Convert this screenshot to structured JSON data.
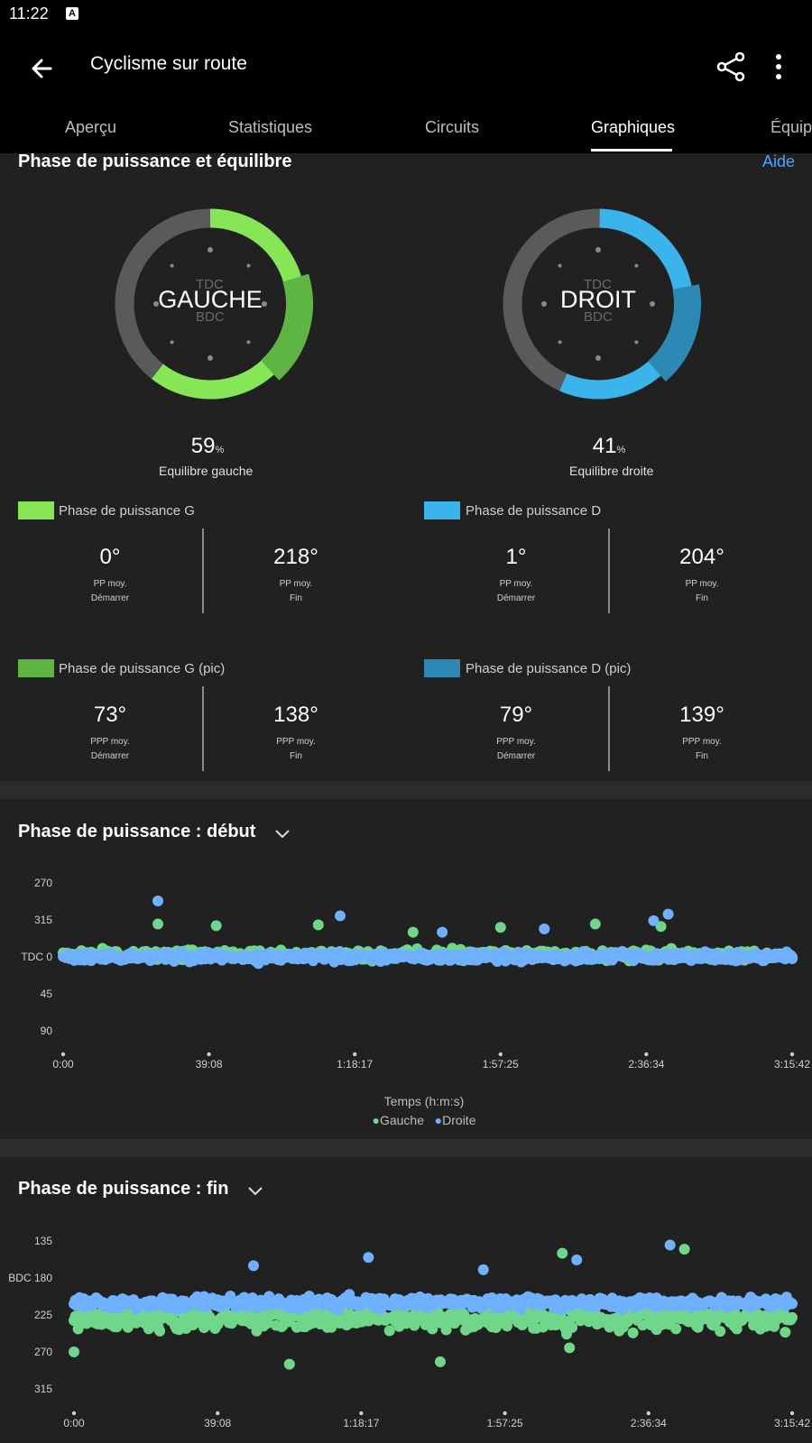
{
  "status_bar": {
    "time": "11:22",
    "notification_icon": "A"
  },
  "app_bar": {
    "title": "Cyclisme sur route"
  },
  "tabs": [
    {
      "label": "Aperçu"
    },
    {
      "label": "Statistiques"
    },
    {
      "label": "Circuits"
    },
    {
      "label": "Graphiques"
    },
    {
      "label": "Équipe"
    }
  ],
  "power_phase": {
    "title": "Phase de puissance et équilibre",
    "help": "Aide",
    "top_label": "TDC",
    "bottom_label": "BDC",
    "left": {
      "label": "GAUCHE",
      "balance_value": "59",
      "balance_unit": "%",
      "balance_caption": "Equilibre gauche",
      "phase_start_deg": 0,
      "phase_end_deg": 218,
      "peak_start_deg": 73,
      "peak_end_deg": 138
    },
    "right": {
      "label": "DROIT",
      "balance_value": "41",
      "balance_unit": "%",
      "balance_caption": "Equilibre droite",
      "phase_start_deg": 1,
      "phase_end_deg": 204,
      "peak_start_deg": 79,
      "peak_end_deg": 139
    },
    "colors": {
      "left": "#86e655",
      "left_peak": "#5fb543",
      "right": "#3ab4ea",
      "right_peak": "#2d88b4",
      "track": "#5a5a5a"
    },
    "groups": [
      {
        "label": "Phase de puissance G",
        "color": "#86e655",
        "metrics": [
          {
            "value": "0°",
            "line1": "PP moy.",
            "line2": "Démarrer"
          },
          {
            "value": "218°",
            "line1": "PP moy.",
            "line2": "Fin"
          }
        ]
      },
      {
        "label": "Phase de puissance D",
        "color": "#3ab4ea",
        "metrics": [
          {
            "value": "1°",
            "line1": "PP moy.",
            "line2": "Démarrer"
          },
          {
            "value": "204°",
            "line1": "PP moy.",
            "line2": "Fin"
          }
        ]
      },
      {
        "label": "Phase de puissance G (pic)",
        "color": "#5fb543",
        "metrics": [
          {
            "value": "73°",
            "line1": "PPP moy.",
            "line2": "Démarrer"
          },
          {
            "value": "138°",
            "line1": "PPP moy.",
            "line2": "Fin"
          }
        ]
      },
      {
        "label": "Phase de puissance D (pic)",
        "color": "#2d88b4",
        "metrics": [
          {
            "value": "79°",
            "line1": "PPP moy.",
            "line2": "Démarrer"
          },
          {
            "value": "139°",
            "line1": "PPP moy.",
            "line2": "Fin"
          }
        ]
      }
    ]
  },
  "chart_data": [
    {
      "type": "scatter",
      "title": "Phase de puissance : début",
      "xlabel": "Temps (h:m:s)",
      "x_ticks": [
        "0:00",
        "39:08",
        "1:18:17",
        "1:57:25",
        "2:36:34",
        "3:15:42"
      ],
      "y_ticks": [
        "270",
        "315",
        "TDC 0",
        "45",
        "90"
      ],
      "ylim": [
        -90,
        90
      ],
      "legend": [
        {
          "name": "Gauche",
          "color": "#6fd68a"
        },
        {
          "name": "Droite",
          "color": "#6fb0ff"
        }
      ],
      "series": [
        {
          "name": "Gauche",
          "color": "#6fd68a",
          "center": -2,
          "spread": 10,
          "outliers": [
            [
              0.13,
              -40
            ],
            [
              0.48,
              -30
            ],
            [
              0.82,
              -37
            ],
            [
              0.73,
              -40
            ],
            [
              0.21,
              -38
            ],
            [
              0.35,
              -39
            ],
            [
              0.6,
              -36
            ]
          ]
        },
        {
          "name": "Droite",
          "color": "#6fb0ff",
          "center": 0,
          "spread": 9,
          "outliers": [
            [
              0.13,
              -68
            ],
            [
              0.38,
              -50
            ],
            [
              0.83,
              -52
            ],
            [
              0.66,
              -34
            ],
            [
              0.52,
              -30
            ],
            [
              0.81,
              -44
            ]
          ]
        }
      ]
    },
    {
      "type": "scatter",
      "title": "Phase de puissance : fin",
      "xlabel": "",
      "x_ticks": [
        "0:00",
        "39:08",
        "1:18:17",
        "1:57:25",
        "2:36:34",
        "3:15:42"
      ],
      "y_ticks": [
        "135",
        "BDC 180",
        "225",
        "270",
        "315"
      ],
      "ylim": [
        135,
        315
      ],
      "series": [
        {
          "name": "Gauche",
          "color": "#6fd68a",
          "center": 230,
          "spread": 22,
          "outliers": [
            [
              0.3,
              285
            ],
            [
              0.51,
              282
            ],
            [
              0.69,
              265
            ],
            [
              0.85,
              145
            ],
            [
              0.68,
              150
            ],
            [
              0.0,
              270
            ]
          ]
        },
        {
          "name": "Droite",
          "color": "#6fb0ff",
          "center": 210,
          "spread": 12,
          "outliers": [
            [
              0.83,
              140
            ],
            [
              0.41,
              155
            ],
            [
              0.25,
              165
            ],
            [
              0.57,
              170
            ],
            [
              0.7,
              158
            ]
          ]
        }
      ]
    }
  ]
}
